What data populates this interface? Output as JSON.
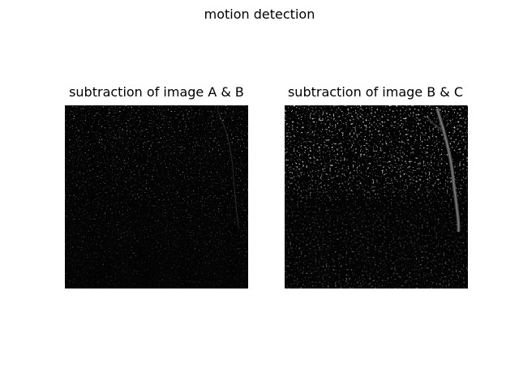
{
  "figure": {
    "suptitle": "motion detection"
  },
  "panels": [
    {
      "title": "subtraction of image A & B"
    },
    {
      "title": "subtraction of image B & C"
    }
  ]
}
